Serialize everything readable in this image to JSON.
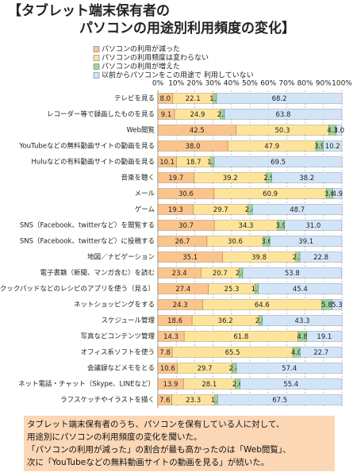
{
  "chart_data": {
    "type": "stacked-bar-horizontal",
    "title": [
      "【タブレット端末保有者の",
      "パソコンの用途別利用頻度の変化】"
    ],
    "categories": [
      "テレビを見る",
      "レコーダー等で録画したものを見る",
      "Web閲覧",
      "YouTubeなどの無料動画サイトの動画を見る",
      "Huluなどの有料動画サイトの動画を見る",
      "音楽を聴く",
      "メール",
      "ゲーム",
      "SNS（Facebook、twitterなど）を閲覧する",
      "SNS（Facebook、twitterなど）に投稿する",
      "地図／ナビゲーション",
      "電子書籍（新聞、マンガ含む）を読む",
      "クックパッドなどのレシピのアプリを使う（見る）",
      "ネットショッピングをする",
      "スケジュール管理",
      "写真などコンテンツ管理",
      "オフィス系ソフトを使う",
      "会議録などメモをとる",
      "ネット電話・チャット（Skype、LINEなど）",
      "ラフスケッチやイラストを描く"
    ],
    "series": [
      {
        "name": "パソコンの利用が減った",
        "color": "#fbc48c",
        "values": [
          8.0,
          9.1,
          42.5,
          38.0,
          10.1,
          19.7,
          30.6,
          19.3,
          30.7,
          26.7,
          35.1,
          23.4,
          27.4,
          24.3,
          18.6,
          14.3,
          7.8,
          10.6,
          13.9,
          7.6
        ],
        "value_labels": [
          "8.0",
          "9.1",
          "42.5",
          "38.0",
          "10.1",
          "19.7",
          "30.6",
          "19.3",
          "30.7",
          "26.7",
          "35.1",
          "23.4",
          "27.4",
          "24.3",
          "18.6",
          "14.3",
          "7.8",
          "10.6",
          "13.9",
          "7.6"
        ]
      },
      {
        "name": "パソコンの利用頻度は変わらない",
        "color": "#fde49a",
        "values": [
          22.1,
          24.9,
          50.3,
          47.9,
          18.7,
          39.2,
          60.9,
          29.7,
          34.3,
          30.6,
          39.8,
          20.7,
          25.3,
          64.6,
          36.2,
          61.8,
          65.5,
          29.7,
          28.1,
          23.3
        ],
        "value_labels": [
          "22.1",
          "24.9",
          "50.3",
          "47.9",
          "18.7",
          "39.2",
          "60.9",
          "29.7",
          "34.3",
          "30.6",
          "39.8",
          "20.7",
          "25.3",
          "64.6",
          "36.2",
          "61.8",
          "65.5",
          "29.7",
          "28.1",
          "23.3"
        ]
      },
      {
        "name": "パソコンの利用が増えた",
        "color": "#9fd49a",
        "values": [
          1.8,
          2.2,
          4.1,
          3.9,
          1.8,
          2.9,
          3.6,
          2.4,
          3.9,
          3.6,
          2.3,
          2.0,
          1.9,
          5.8,
          2.0,
          4.8,
          4.0,
          2.4,
          2.6,
          1.6
        ],
        "value_labels": [
          "1.8",
          "2.2",
          "4.1",
          "3.9",
          "1.8",
          "2.9",
          "3.6",
          "2.4",
          "3.9",
          "3.6",
          "2.3",
          "2.0",
          "1.9",
          "5.8",
          "2.0",
          "4.8",
          "4.0",
          "2.4",
          "2.6",
          "1.6"
        ]
      },
      {
        "name": "以前からパソコンをこの用途で 利用していない",
        "color": "#d2e5f8",
        "values": [
          68.2,
          63.8,
          3.0,
          10.2,
          69.5,
          38.2,
          4.9,
          48.7,
          31.0,
          39.1,
          22.8,
          53.8,
          45.4,
          5.3,
          43.3,
          19.1,
          22.7,
          57.4,
          55.4,
          67.5
        ],
        "value_labels": [
          "68.2",
          "63.8",
          "3.0",
          "10.2",
          "69.5",
          "38.2",
          "4.9",
          "48.7",
          "31.0",
          "39.1",
          "22.8",
          "53.8",
          "45.4",
          "5.3",
          "43.3",
          "19.1",
          "22.7",
          "57.4",
          "55.4",
          "67.5"
        ]
      }
    ],
    "xlim": [
      0,
      100
    ],
    "xticks": [
      {
        "value": 0,
        "label": "0%"
      },
      {
        "value": 10,
        "label": "10%"
      },
      {
        "value": 20,
        "label": "20%"
      },
      {
        "value": 30,
        "label": "30%"
      },
      {
        "value": 40,
        "label": "40%"
      },
      {
        "value": 50,
        "label": "50%"
      },
      {
        "value": 60,
        "label": "60%"
      },
      {
        "value": 70,
        "label": "70%"
      },
      {
        "value": 80,
        "label": "80%"
      },
      {
        "value": 90,
        "label": "90%"
      },
      {
        "value": 100,
        "label": "100%"
      }
    ],
    "grid": true,
    "note_lines": [
      "タブレット端末保有者のうち、パソコンを保有している人に対して、",
      "用途別にパソコンの利用頻度の変化を聞いた。",
      "「パソコンの利用が減った」の割合が最も高かったのは「Web閲覧」、",
      "次に「YouTubeなどの無料動画サイトの動画を見る」が続いた。"
    ]
  }
}
